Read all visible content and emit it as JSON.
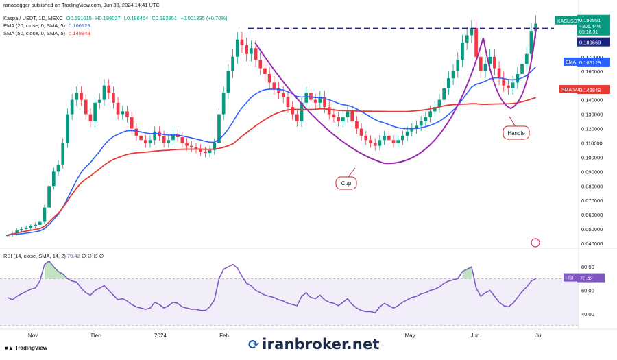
{
  "header": {
    "published": "ranadagger published on TradingView.com, Jun 30, 2024 14:41 UTC",
    "symbol": "Kaspa / USDT, 1D, MEXC",
    "ohlc": {
      "o": "O0.191615",
      "h": "H0.198027",
      "l": "L0.186454",
      "c": "C0.192951",
      "chg": "+0.001335 (+0.70%)"
    },
    "ema_label": "EMA (20, close, 0, SMA, 5)",
    "ema_value": "0.166129",
    "sma_label": "SMA (50, close, 0, SMA, 5)",
    "sma_value": "0.149848",
    "rsi_label": "RSI (14, close, SMA, 14, 2)",
    "rsi_value": "70.42",
    "rsi_extra": "∅ ∅ ∅ ∅"
  },
  "footer": {
    "tradingview": "TradingView",
    "brand": "iranbroker.net"
  },
  "colors": {
    "up": "#089981",
    "down": "#f23645",
    "ema": "#2962ff",
    "sma": "#e53935",
    "rsi": "#7e57c2",
    "pattern": "#9c27b0",
    "resistance": "#1a237e"
  },
  "chart_data": {
    "type": "candlestick",
    "price_axis": {
      "unit": "USDT",
      "range": [
        0.04,
        0.2
      ],
      "ticks": [
        "0.170000",
        "0.160000",
        "0.140000",
        "0.130000",
        "0.120000",
        "0.110000",
        "0.100000",
        "0.090000",
        "0.080000",
        "0.070000",
        "0.060000",
        "0.050000",
        "0.040000"
      ]
    },
    "time_axis": {
      "labels": [
        "Nov",
        "Dec",
        "2024",
        "Feb",
        "May",
        "Jun",
        "Jul"
      ]
    },
    "closes": [
      0.046,
      0.047,
      0.049,
      0.05,
      0.051,
      0.052,
      0.053,
      0.055,
      0.065,
      0.08,
      0.09,
      0.095,
      0.11,
      0.13,
      0.14,
      0.145,
      0.14,
      0.13,
      0.125,
      0.138,
      0.14,
      0.15,
      0.145,
      0.138,
      0.13,
      0.132,
      0.128,
      0.12,
      0.115,
      0.112,
      0.11,
      0.112,
      0.118,
      0.115,
      0.11,
      0.112,
      0.116,
      0.114,
      0.11,
      0.108,
      0.107,
      0.106,
      0.104,
      0.103,
      0.105,
      0.11,
      0.13,
      0.145,
      0.16,
      0.17,
      0.182,
      0.178,
      0.172,
      0.176,
      0.168,
      0.162,
      0.158,
      0.152,
      0.148,
      0.145,
      0.142,
      0.135,
      0.13,
      0.125,
      0.138,
      0.145,
      0.14,
      0.138,
      0.142,
      0.135,
      0.13,
      0.128,
      0.125,
      0.128,
      0.132,
      0.125,
      0.12,
      0.115,
      0.112,
      0.11,
      0.108,
      0.112,
      0.115,
      0.112,
      0.11,
      0.112,
      0.115,
      0.118,
      0.12,
      0.122,
      0.125,
      0.128,
      0.132,
      0.135,
      0.14,
      0.148,
      0.155,
      0.16,
      0.168,
      0.18,
      0.185,
      0.19,
      0.17,
      0.16,
      0.165,
      0.17,
      0.162,
      0.155,
      0.15,
      0.148,
      0.152,
      0.158,
      0.165,
      0.172,
      0.188,
      0.193
    ],
    "last_price": "0.192951",
    "last_change": "+306.44%",
    "countdown": "09:18:31",
    "resistance": "0.189669",
    "ema_badge": "0.166129",
    "sma_badge": "0.149848",
    "symbol_badge": "KASUSDT",
    "ema_tag": "EMA",
    "sma_tag": "SMA:MA",
    "annotations": [
      "Cup",
      "Handle"
    ],
    "rsi": {
      "ticks": [
        "80.00",
        "60.00",
        "40.00"
      ],
      "band": [
        30,
        70
      ],
      "last": "70.42",
      "tag": "RSI",
      "values": [
        54,
        52,
        55,
        57,
        59,
        61,
        62,
        68,
        82,
        85,
        80,
        76,
        74,
        70,
        68,
        67,
        62,
        58,
        56,
        60,
        62,
        64,
        60,
        56,
        52,
        53,
        51,
        48,
        46,
        45,
        44,
        45,
        50,
        48,
        45,
        47,
        50,
        49,
        46,
        45,
        44,
        44,
        43,
        43,
        46,
        52,
        70,
        78,
        80,
        82,
        79,
        72,
        66,
        64,
        60,
        58,
        56,
        55,
        54,
        52,
        51,
        49,
        48,
        47,
        55,
        58,
        54,
        53,
        56,
        52,
        50,
        49,
        47,
        50,
        53,
        48,
        45,
        43,
        42,
        42,
        41,
        46,
        49,
        47,
        45,
        47,
        50,
        52,
        54,
        55,
        57,
        58,
        60,
        61,
        63,
        66,
        68,
        69,
        70,
        76,
        78,
        80,
        62,
        55,
        58,
        60,
        55,
        50,
        47,
        46,
        49,
        54,
        59,
        63,
        68,
        70
      ]
    }
  }
}
